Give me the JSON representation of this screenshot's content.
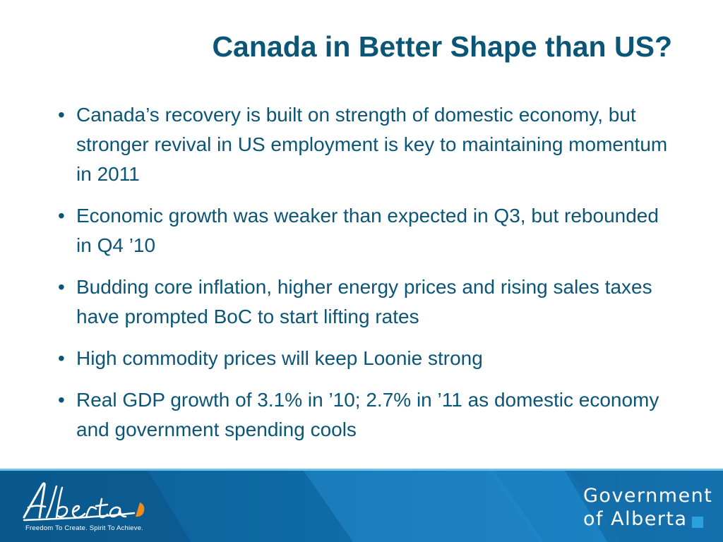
{
  "slide": {
    "title": "Canada in Better Shape than US?",
    "bullet_symbol": "•",
    "bullets": [
      "Canada’s recovery is built on strength of domestic economy, but stronger revival in US employment is key to maintaining momentum in 2011",
      "Economic growth was weaker than expected in Q3, but rebounded in Q4 ’10",
      "Budding core inflation, higher energy prices and rising sales taxes have prompted BoC to start lifting rates",
      "High commodity prices will keep Loonie strong",
      "Real GDP growth of 3.1% in ’10; 2.7% in ’11 as domestic economy and government spending cools"
    ]
  },
  "footer": {
    "logo_text": "Alberta",
    "tagline": "Freedom To Create. Spirit To Achieve.",
    "government_line1": "Government",
    "government_line2": "of Alberta",
    "colors": {
      "title_text": "#0b5577",
      "band_dark": "#0d5f96",
      "band_light": "#1c86c8",
      "accent_orange": "#f08a1e",
      "accent_square": "#2ba0dd"
    }
  }
}
